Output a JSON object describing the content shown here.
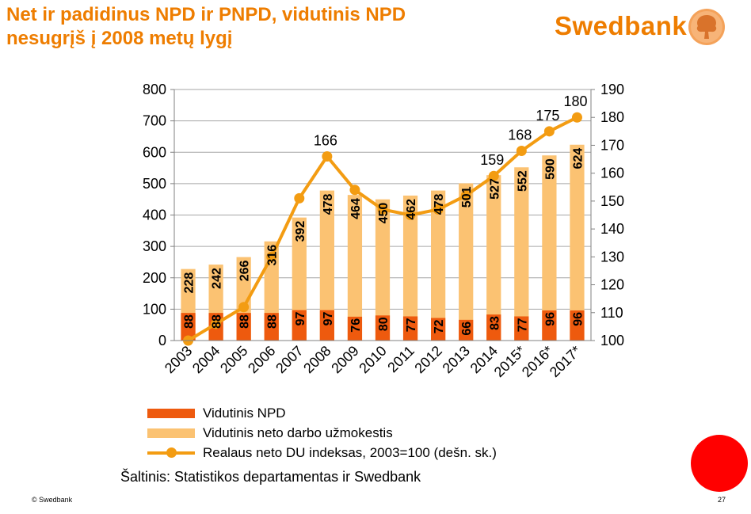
{
  "title_lines": [
    "Net ir padidinus NPD ir PNPD, vidutinis NPD",
    "nesugrįš į 2008 metų lygį"
  ],
  "brand": "Swedbank",
  "source": "Šaltinis: Statistikos departamentas ir Swedbank",
  "footer": {
    "copyright": "© Swedbank",
    "page_number": "27"
  },
  "colors": {
    "title": "#ee7d00",
    "npd_bar": "#ee5a0e",
    "wage_bar": "#fbc272",
    "index_line": "#f39c12",
    "grid": "#a6a6a6",
    "red_dot": "#ff0000"
  },
  "chart_data": {
    "type": "bar",
    "categories": [
      "2003",
      "2004",
      "2005",
      "2006",
      "2007",
      "2008",
      "2009",
      "2010",
      "2011",
      "2012",
      "2013",
      "2014",
      "2015*",
      "2016*",
      "2017*"
    ],
    "series": [
      {
        "name": "Vidutinis NPD",
        "type": "bar",
        "axis": "left",
        "values": [
          88,
          88,
          88,
          88,
          97,
          97,
          76,
          80,
          77,
          72,
          66,
          83,
          77,
          96,
          96
        ]
      },
      {
        "name": "Vidutinis neto darbo užmokestis",
        "type": "bar",
        "axis": "left",
        "values": [
          228,
          242,
          266,
          316,
          392,
          478,
          464,
          450,
          462,
          478,
          501,
          527,
          552,
          590,
          624
        ]
      },
      {
        "name": "Realaus neto DU indeksas, 2003=100 (dešn. sk.)",
        "type": "line",
        "axis": "right",
        "values": [
          100,
          106,
          112,
          130,
          151,
          166,
          154,
          147,
          145,
          147,
          152,
          159,
          168,
          175,
          180
        ]
      }
    ],
    "line_value_labels": [
      {
        "category": "2008",
        "label": "166"
      },
      {
        "category": "2014",
        "label": "159"
      },
      {
        "category": "2015*",
        "label": "168"
      },
      {
        "category": "2016*",
        "label": "175"
      },
      {
        "category": "2017*",
        "label": "180"
      }
    ],
    "y_left": {
      "ylim": [
        0,
        800
      ],
      "ticks": [
        "0",
        "100",
        "200",
        "300",
        "400",
        "500",
        "600",
        "700",
        "800"
      ]
    },
    "y_right": {
      "ylim": [
        100,
        190
      ],
      "ticks": [
        "100",
        "110",
        "120",
        "130",
        "140",
        "150",
        "160",
        "170",
        "180",
        "190"
      ]
    },
    "grid": true,
    "legend_position": "bottom"
  }
}
